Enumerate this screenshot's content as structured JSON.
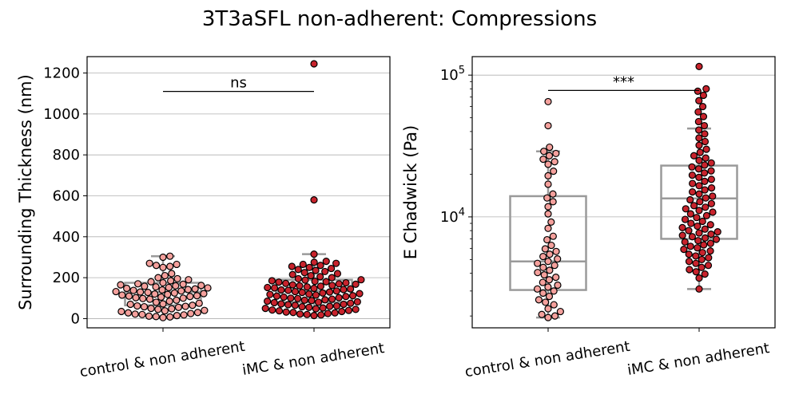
{
  "figure": {
    "title": "3T3aSFL non-adherent: Compressions"
  },
  "chart_data": [
    {
      "type": "box+swarm",
      "title": "",
      "xlabel": "",
      "ylabel": "Surrounding Thickness (nm)",
      "yscale": "linear",
      "ylim": [
        -45,
        1280
      ],
      "yticks": [
        0,
        200,
        400,
        600,
        800,
        1000,
        1200
      ],
      "ytick_labels": [
        "0",
        "200",
        "400",
        "600",
        "800",
        "1000",
        "1200"
      ],
      "grid": "horizontal",
      "categories": [
        "control & non adherent",
        "iMC & non adherent"
      ],
      "colors": [
        "#f4a09c",
        "#c8232c"
      ],
      "boxes": [
        {
          "whislo": 5,
          "q1": 65,
          "med": 130,
          "q3": 175,
          "whishi": 305
        },
        {
          "whislo": 15,
          "q1": 80,
          "med": 135,
          "q3": 190,
          "whishi": 315
        }
      ],
      "series": [
        {
          "values": [
            5,
            8,
            10,
            12,
            15,
            18,
            20,
            22,
            25,
            28,
            30,
            35,
            38,
            40,
            45,
            48,
            50,
            55,
            58,
            60,
            62,
            65,
            70,
            72,
            75,
            80,
            85,
            90,
            95,
            98,
            100,
            102,
            105,
            108,
            110,
            112,
            115,
            118,
            120,
            122,
            125,
            128,
            130,
            132,
            135,
            138,
            140,
            142,
            145,
            148,
            150,
            152,
            155,
            158,
            160,
            162,
            165,
            168,
            170,
            175,
            180,
            185,
            190,
            195,
            200,
            210,
            220,
            250,
            255,
            260,
            265,
            270,
            300,
            305
          ]
        },
        {
          "values": [
            15,
            18,
            20,
            22,
            25,
            28,
            30,
            32,
            35,
            38,
            40,
            42,
            45,
            48,
            50,
            52,
            55,
            58,
            60,
            62,
            65,
            68,
            70,
            72,
            75,
            78,
            80,
            82,
            85,
            88,
            90,
            92,
            95,
            98,
            100,
            102,
            105,
            108,
            110,
            112,
            115,
            118,
            120,
            122,
            125,
            128,
            130,
            132,
            135,
            138,
            140,
            142,
            145,
            148,
            150,
            152,
            155,
            158,
            160,
            162,
            165,
            168,
            170,
            172,
            175,
            178,
            180,
            182,
            185,
            188,
            190,
            195,
            200,
            205,
            210,
            215,
            220,
            225,
            230,
            235,
            240,
            245,
            250,
            255,
            260,
            265,
            270,
            275,
            280,
            315,
            580,
            1245
          ]
        }
      ],
      "annotations": [
        {
          "text": "ns",
          "y": 1110
        }
      ]
    },
    {
      "type": "box+swarm",
      "title": "",
      "xlabel": "",
      "ylabel": "E Chadwick (Pa)",
      "yscale": "log",
      "ylim": [
        1650,
        135000
      ],
      "yticks": [
        10000,
        100000
      ],
      "ytick_labels": [
        "10^4",
        "10^5"
      ],
      "grid": "horizontal",
      "categories": [
        "control & non adherent",
        "iMC & non adherent"
      ],
      "colors": [
        "#f4a09c",
        "#c8232c"
      ],
      "boxes": [
        {
          "whislo": 1950,
          "q1": 3050,
          "med": 4850,
          "q3": 14000,
          "whishi": 29000
        },
        {
          "whislo": 3100,
          "q1": 7000,
          "med": 13500,
          "q3": 23000,
          "whishi": 42000
        }
      ],
      "series": [
        {
          "values": [
            1950,
            2000,
            2050,
            2150,
            2250,
            2400,
            2500,
            2600,
            2750,
            2900,
            3000,
            3100,
            3200,
            3300,
            3450,
            3600,
            3750,
            3900,
            4050,
            4200,
            4400,
            4550,
            4700,
            4850,
            5050,
            5250,
            5450,
            5700,
            5950,
            6300,
            6900,
            7300,
            8300,
            9200,
            10500,
            11800,
            12800,
            13600,
            14500,
            17000,
            19500,
            21000,
            23500,
            24500,
            25500,
            27000,
            28000,
            29000,
            31000,
            44000,
            65000
          ]
        },
        {
          "values": [
            3100,
            3700,
            3950,
            4100,
            4250,
            4400,
            4550,
            4700,
            4850,
            5000,
            5150,
            5300,
            5450,
            5600,
            5750,
            5900,
            6050,
            6200,
            6350,
            6500,
            6650,
            6800,
            6950,
            7100,
            7250,
            7400,
            7550,
            7700,
            7850,
            8000,
            8200,
            8400,
            8600,
            8800,
            9000,
            9300,
            9600,
            9900,
            10200,
            10500,
            10800,
            11100,
            11400,
            11700,
            12000,
            12400,
            12800,
            13200,
            13600,
            14000,
            14500,
            15000,
            15500,
            16000,
            16600,
            17200,
            17800,
            18400,
            19000,
            19700,
            20400,
            21100,
            21800,
            22500,
            23200,
            24000,
            25000,
            26000,
            27000,
            28500,
            30000,
            32000,
            34000,
            36000,
            38500,
            41000,
            44000,
            47000,
            51000,
            55000,
            60000,
            66000,
            72000,
            77000,
            80000,
            115000
          ]
        }
      ],
      "annotations": [
        {
          "text": "***",
          "y": 78000
        }
      ]
    }
  ]
}
